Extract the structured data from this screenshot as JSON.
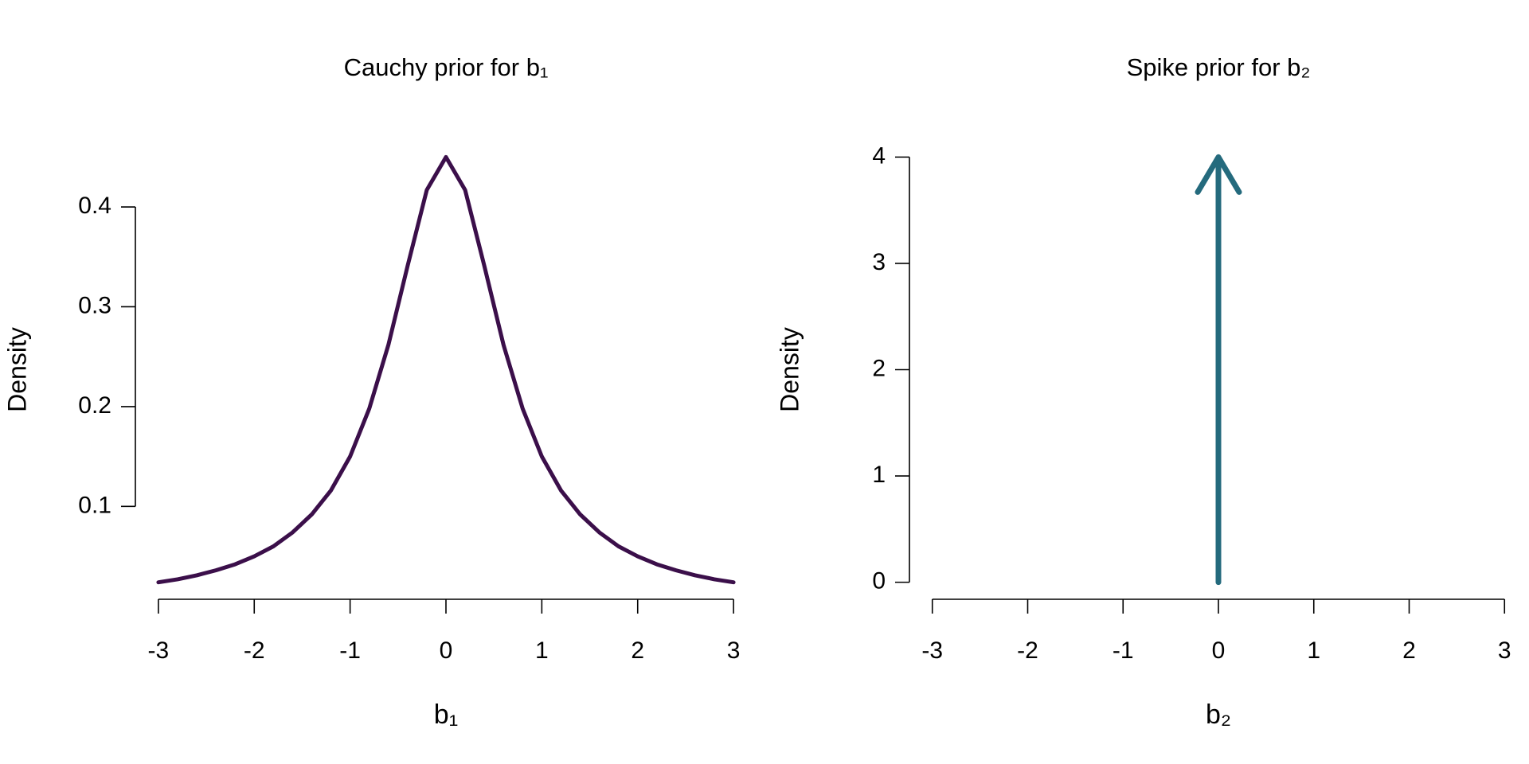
{
  "chart_data": [
    {
      "type": "line",
      "title": "Cauchy prior for b₁",
      "x_label": "b₁",
      "y_label": "Density",
      "x": [
        -3,
        -2.8,
        -2.6,
        -2.4,
        -2.2,
        -2,
        -1.8,
        -1.6,
        -1.4,
        -1.2,
        -1,
        -0.8,
        -0.6,
        -0.4,
        -0.2,
        0,
        0.2,
        0.4,
        0.6,
        0.8,
        1,
        1.2,
        1.4,
        1.6,
        1.8,
        2,
        2.2,
        2.4,
        2.6,
        2.8,
        3
      ],
      "values": [
        0.024,
        0.027,
        0.031,
        0.036,
        0.042,
        0.05,
        0.06,
        0.074,
        0.092,
        0.116,
        0.15,
        0.198,
        0.262,
        0.341,
        0.417,
        0.45,
        0.417,
        0.341,
        0.262,
        0.198,
        0.15,
        0.116,
        0.092,
        0.074,
        0.06,
        0.05,
        0.042,
        0.036,
        0.031,
        0.027,
        0.024
      ],
      "color": "#3b0f4a",
      "xlim": [
        -3.24,
        3.24
      ],
      "xticks": [
        -3,
        -2,
        -1,
        0,
        1,
        2,
        3
      ],
      "ylim": [
        0.007,
        0.467
      ],
      "yticks": [
        0.1,
        0.2,
        0.3,
        0.4
      ]
    },
    {
      "type": "spike",
      "title": "Spike prior for b₂",
      "x_label": "b₂",
      "y_label": "Density",
      "x": [
        0
      ],
      "values": [
        4
      ],
      "color": "#246a7d",
      "xlim": [
        -3.24,
        3.24
      ],
      "xticks": [
        -3,
        -2,
        -1,
        0,
        1,
        2,
        3
      ],
      "ylim": [
        -0.16,
        4.16
      ],
      "yticks": [
        0,
        1,
        2,
        3,
        4
      ]
    }
  ]
}
